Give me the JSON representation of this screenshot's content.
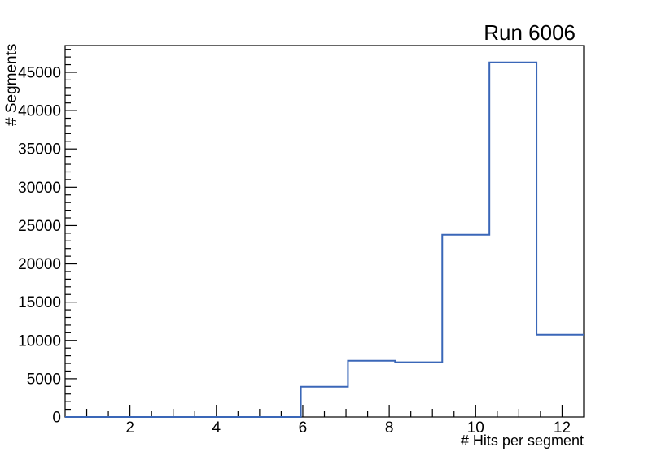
{
  "chart_data": {
    "type": "histogram",
    "title": "Run 6006",
    "xlabel": "# Hits per segment",
    "ylabel": "# Segments",
    "xlim": [
      0.5,
      12.5
    ],
    "ylim": [
      0,
      48500
    ],
    "grid": false,
    "legend": "none",
    "line_color": "#3a67b8",
    "frame_color": "#000000",
    "bin_edges": [
      0.5,
      1.591,
      2.682,
      3.773,
      4.864,
      5.955,
      7.045,
      8.136,
      9.227,
      10.318,
      11.409,
      12.5
    ],
    "counts": [
      0,
      0,
      0,
      0,
      0,
      3950,
      7350,
      7150,
      23800,
      46300,
      10750
    ],
    "x_axis": {
      "major_ticks": [
        2,
        4,
        6,
        8,
        10,
        12
      ],
      "major_labels": [
        "2",
        "4",
        "6",
        "8",
        "10",
        "12"
      ],
      "medium_ticks": [
        1,
        3,
        5,
        7,
        9,
        11
      ],
      "minor_step": 0.5
    },
    "y_axis": {
      "major_step": 5000,
      "minor_step": 1000,
      "major_labels": [
        "0",
        "5000",
        "10000",
        "15000",
        "20000",
        "25000",
        "30000",
        "35000",
        "40000",
        "45000"
      ]
    }
  }
}
